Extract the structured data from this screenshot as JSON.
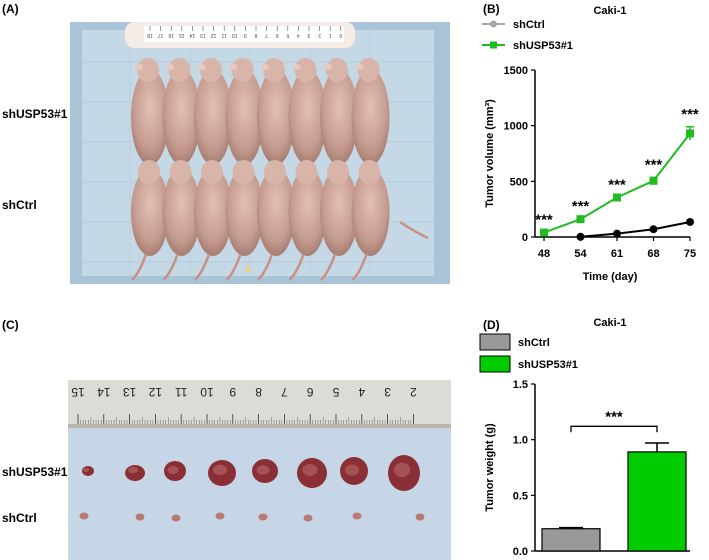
{
  "panels": {
    "A": {
      "label": "(A)",
      "group_labels": [
        "shUSP53#1",
        "shCtrl"
      ],
      "ruler_marks": [
        "18",
        "17",
        "16",
        "15",
        "14",
        "13",
        "12",
        "11",
        "10",
        "9",
        "8",
        "7",
        "6",
        "5",
        "4",
        "3",
        "2",
        "1",
        "0"
      ]
    },
    "B": {
      "label": "(B)"
    },
    "C": {
      "label": "(C)",
      "group_labels": [
        "shUSP53#1",
        "shCtrl"
      ],
      "ruler_marks": [
        "15",
        "14",
        "13",
        "12",
        "11",
        "10",
        "9",
        "8",
        "7",
        "6",
        "5",
        "4",
        "3",
        "2"
      ]
    },
    "D": {
      "label": "(D)"
    }
  },
  "chart_data": [
    {
      "type": "line",
      "title": "Caki-1",
      "xlabel": "Time (day)",
      "ylabel": "Tumor volume (mm³)",
      "categories": [
        "48",
        "54",
        "61",
        "68",
        "75"
      ],
      "ylim": [
        0,
        1500
      ],
      "yticks": [
        "0",
        "500",
        "1000",
        "1500"
      ],
      "legend_position": "top-left",
      "series": [
        {
          "name": "shCtrl",
          "color": "#000000",
          "marker": "circle",
          "legend_color": "#a6a6a6",
          "values": [
            null,
            2,
            30,
            70,
            135
          ]
        },
        {
          "name": "shUSP53#1",
          "color": "#22bb22",
          "marker": "square",
          "values": [
            40,
            160,
            355,
            505,
            930
          ],
          "errors": [
            0,
            0,
            0,
            30,
            60
          ]
        }
      ],
      "significance": [
        "***",
        "***",
        "***",
        "***",
        "***"
      ]
    },
    {
      "type": "bar",
      "title": "Caki-1",
      "xlabel": "",
      "ylabel": "Tumor weight (g)",
      "categories": [
        "shCtrl",
        "shUSP53#1"
      ],
      "values": [
        0.2,
        0.89
      ],
      "errors": [
        0.01,
        0.08
      ],
      "colors": [
        "#999999",
        "#00cc00"
      ],
      "ylim": [
        0,
        1.5
      ],
      "yticks": [
        "0.0",
        "0.5",
        "1.0",
        "1.5"
      ],
      "legend_position": "top-left",
      "significance": "***"
    }
  ]
}
